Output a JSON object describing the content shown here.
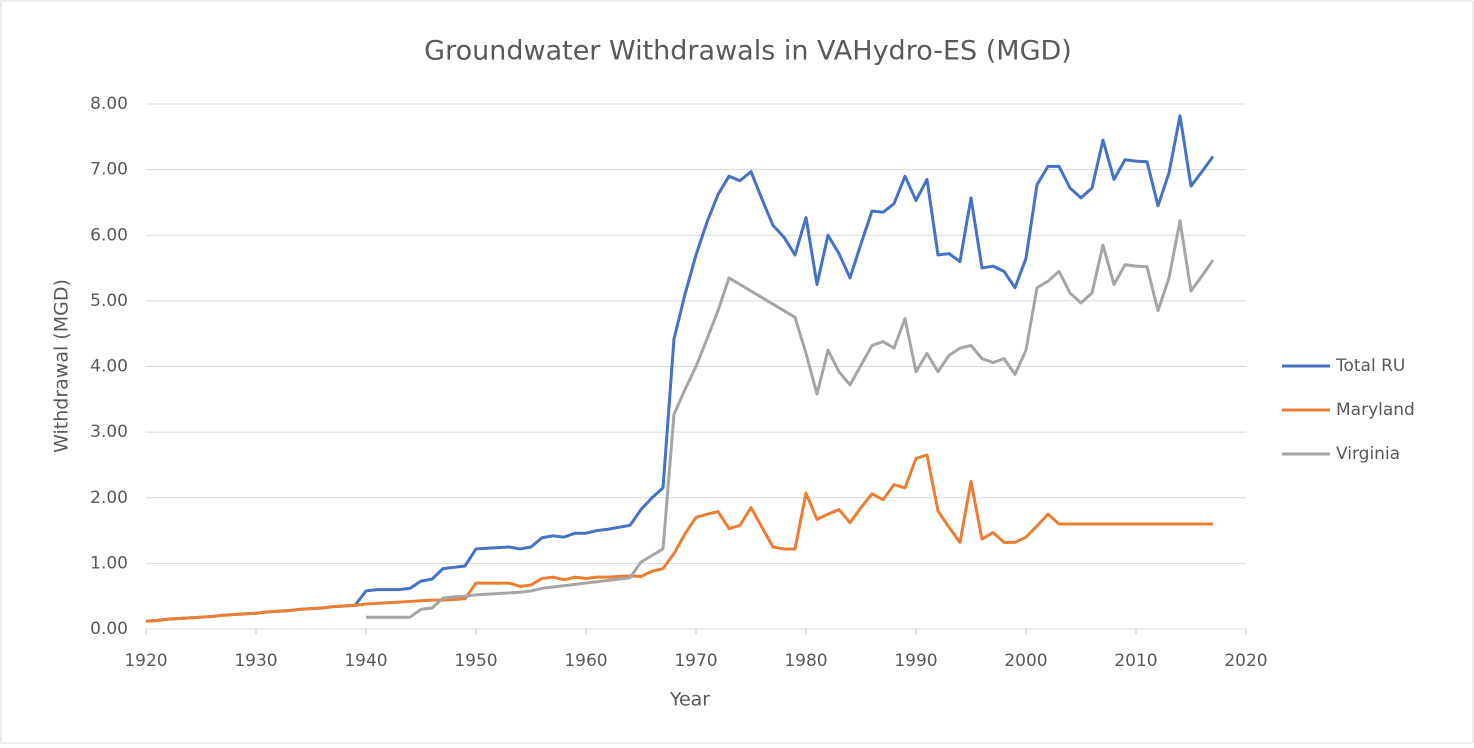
{
  "chart_data": {
    "type": "line",
    "title": "Groundwater Withdrawals in VAHydro-ES (MGD)",
    "xlabel": "Year",
    "ylabel": "Withdrawal (MGD)",
    "x": [
      1920,
      1921,
      1922,
      1923,
      1924,
      1925,
      1926,
      1927,
      1928,
      1929,
      1930,
      1931,
      1932,
      1933,
      1934,
      1935,
      1936,
      1937,
      1938,
      1939,
      1940,
      1941,
      1942,
      1943,
      1944,
      1945,
      1946,
      1947,
      1948,
      1949,
      1950,
      1951,
      1952,
      1953,
      1954,
      1955,
      1956,
      1957,
      1958,
      1959,
      1960,
      1961,
      1962,
      1963,
      1964,
      1965,
      1966,
      1967,
      1968,
      1969,
      1970,
      1971,
      1972,
      1973,
      1974,
      1975,
      1976,
      1977,
      1978,
      1979,
      1980,
      1981,
      1982,
      1983,
      1984,
      1985,
      1986,
      1987,
      1988,
      1989,
      1990,
      1991,
      1992,
      1993,
      1994,
      1995,
      1996,
      1997,
      1998,
      1999,
      2000,
      2001,
      2002,
      2003,
      2004,
      2005,
      2006,
      2007,
      2008,
      2009,
      2010,
      2011,
      2012,
      2013,
      2014,
      2015,
      2016,
      2017
    ],
    "series": [
      {
        "name": "Total RU",
        "color": "#4472c4",
        "values": [
          0.12,
          0.13,
          0.15,
          0.16,
          0.17,
          0.18,
          0.19,
          0.21,
          0.22,
          0.23,
          0.24,
          0.26,
          0.27,
          0.28,
          0.3,
          0.31,
          0.32,
          0.34,
          0.35,
          0.36,
          0.58,
          0.6,
          0.6,
          0.6,
          0.62,
          0.73,
          0.76,
          0.92,
          0.94,
          0.96,
          1.22,
          1.23,
          1.24,
          1.25,
          1.22,
          1.25,
          1.39,
          1.42,
          1.4,
          1.46,
          1.46,
          1.5,
          1.52,
          1.55,
          1.58,
          1.82,
          2.0,
          2.15,
          4.42,
          5.1,
          5.7,
          6.2,
          6.62,
          6.9,
          6.83,
          6.97,
          6.55,
          6.15,
          5.97,
          5.7,
          6.27,
          5.25,
          6.0,
          5.72,
          5.35,
          5.87,
          6.37,
          6.35,
          6.48,
          6.9,
          6.53,
          6.85,
          5.7,
          5.72,
          5.6,
          6.57,
          5.5,
          5.53,
          5.45,
          5.2,
          5.65,
          6.77,
          7.05,
          7.05,
          6.72,
          6.57,
          6.72,
          7.45,
          6.85,
          7.15,
          7.13,
          7.12,
          6.45,
          6.95,
          7.82,
          6.75,
          6.97,
          7.2
        ]
      },
      {
        "name": "Maryland",
        "color": "#ed7d31",
        "values": [
          0.12,
          0.13,
          0.15,
          0.16,
          0.17,
          0.18,
          0.19,
          0.21,
          0.22,
          0.23,
          0.24,
          0.26,
          0.27,
          0.28,
          0.3,
          0.31,
          0.32,
          0.34,
          0.35,
          0.36,
          0.38,
          0.39,
          0.4,
          0.41,
          0.42,
          0.43,
          0.44,
          0.44,
          0.45,
          0.46,
          0.7,
          0.7,
          0.7,
          0.7,
          0.65,
          0.67,
          0.77,
          0.79,
          0.75,
          0.79,
          0.77,
          0.79,
          0.79,
          0.8,
          0.81,
          0.8,
          0.88,
          0.92,
          1.15,
          1.45,
          1.7,
          1.75,
          1.79,
          1.53,
          1.58,
          1.85,
          1.55,
          1.25,
          1.22,
          1.22,
          2.07,
          1.67,
          1.75,
          1.82,
          1.62,
          1.85,
          2.06,
          1.97,
          2.2,
          2.15,
          2.6,
          2.65,
          1.8,
          1.55,
          1.32,
          2.25,
          1.37,
          1.47,
          1.32,
          1.32,
          1.4,
          1.57,
          1.75,
          1.6,
          1.6,
          1.6,
          1.6,
          1.6,
          1.6,
          1.6,
          1.6,
          1.6,
          1.6,
          1.6,
          1.6,
          1.6,
          1.6,
          1.6
        ]
      },
      {
        "name": "Virginia",
        "color": "#a5a5a5",
        "values": [
          null,
          null,
          null,
          null,
          null,
          null,
          null,
          null,
          null,
          null,
          null,
          null,
          null,
          null,
          null,
          null,
          null,
          null,
          null,
          null,
          0.18,
          0.18,
          0.18,
          0.18,
          0.18,
          0.3,
          0.32,
          0.47,
          0.49,
          0.5,
          0.52,
          0.53,
          0.54,
          0.55,
          0.56,
          0.58,
          0.62,
          0.64,
          0.66,
          0.68,
          0.7,
          0.72,
          0.74,
          0.76,
          0.78,
          1.02,
          1.12,
          1.22,
          3.27,
          3.65,
          4.0,
          4.42,
          4.85,
          5.35,
          5.25,
          5.15,
          5.05,
          4.95,
          4.85,
          4.75,
          4.2,
          3.58,
          4.25,
          3.92,
          3.72,
          4.02,
          4.32,
          4.38,
          4.28,
          4.73,
          3.92,
          4.2,
          3.92,
          4.17,
          4.28,
          4.32,
          4.12,
          4.06,
          4.12,
          3.88,
          4.25,
          5.2,
          5.3,
          5.45,
          5.12,
          4.97,
          5.12,
          5.85,
          5.25,
          5.55,
          5.53,
          5.52,
          4.85,
          5.35,
          6.22,
          5.15,
          5.38,
          5.62
        ]
      }
    ],
    "xlim": [
      1920,
      2020
    ],
    "xticks": [
      1920,
      1930,
      1940,
      1950,
      1960,
      1970,
      1980,
      1990,
      2000,
      2010,
      2020
    ],
    "ylim": [
      0,
      8
    ],
    "yticks": [
      {
        "value": 0,
        "label": "0.00"
      },
      {
        "value": 1,
        "label": "1.00"
      },
      {
        "value": 2,
        "label": "2.00"
      },
      {
        "value": 3,
        "label": "3.00"
      },
      {
        "value": 4,
        "label": "4.00"
      },
      {
        "value": 5,
        "label": "5.00"
      },
      {
        "value": 6,
        "label": "6.00"
      },
      {
        "value": 7,
        "label": "7.00"
      },
      {
        "value": 8,
        "label": "8.00"
      }
    ],
    "grid": true,
    "legend": "right"
  }
}
